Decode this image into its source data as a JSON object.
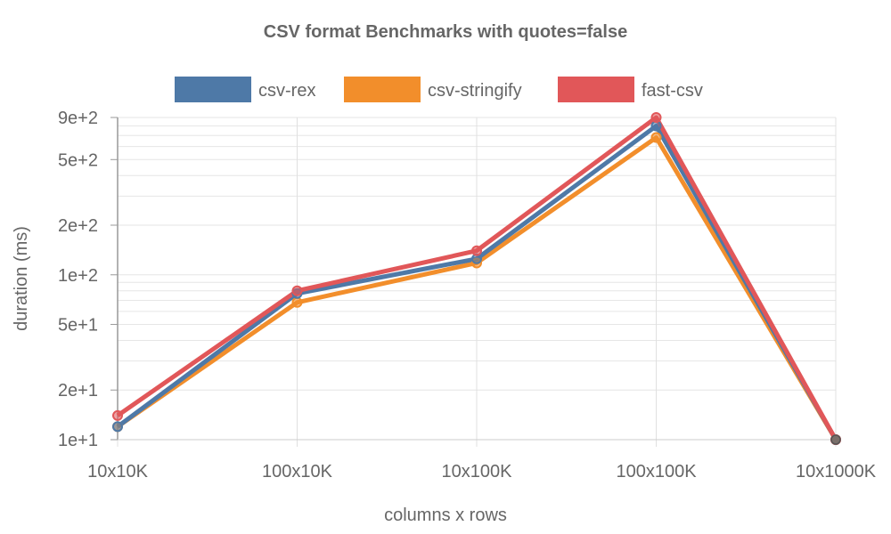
{
  "chart_data": {
    "type": "line",
    "title": "CSV format Benchmarks with quotes=false",
    "xlabel": "columns x rows",
    "ylabel": "duration (ms)",
    "y_scale": "log",
    "ylim": [
      10,
      900
    ],
    "categories": [
      "10x10K",
      "100x10K",
      "10x100K",
      "100x100K",
      "10x1000K"
    ],
    "y_ticks": [
      10,
      20,
      50,
      100,
      200,
      500,
      900
    ],
    "y_tick_labels": [
      "1e+1",
      "2e+1",
      "5e+1",
      "1e+2",
      "2e+2",
      "5e+2",
      "9e+2"
    ],
    "legend_position": "top",
    "grid": true,
    "series": [
      {
        "name": "csv-rex",
        "color": "#4e79a7",
        "values": [
          12,
          77,
          125,
          800,
          10
        ]
      },
      {
        "name": "csv-stringify",
        "color": "#f28e2b",
        "values": [
          12,
          68,
          118,
          680,
          10
        ]
      },
      {
        "name": "fast-csv",
        "color": "#e15759",
        "values": [
          14,
          80,
          140,
          900,
          10
        ]
      }
    ]
  }
}
